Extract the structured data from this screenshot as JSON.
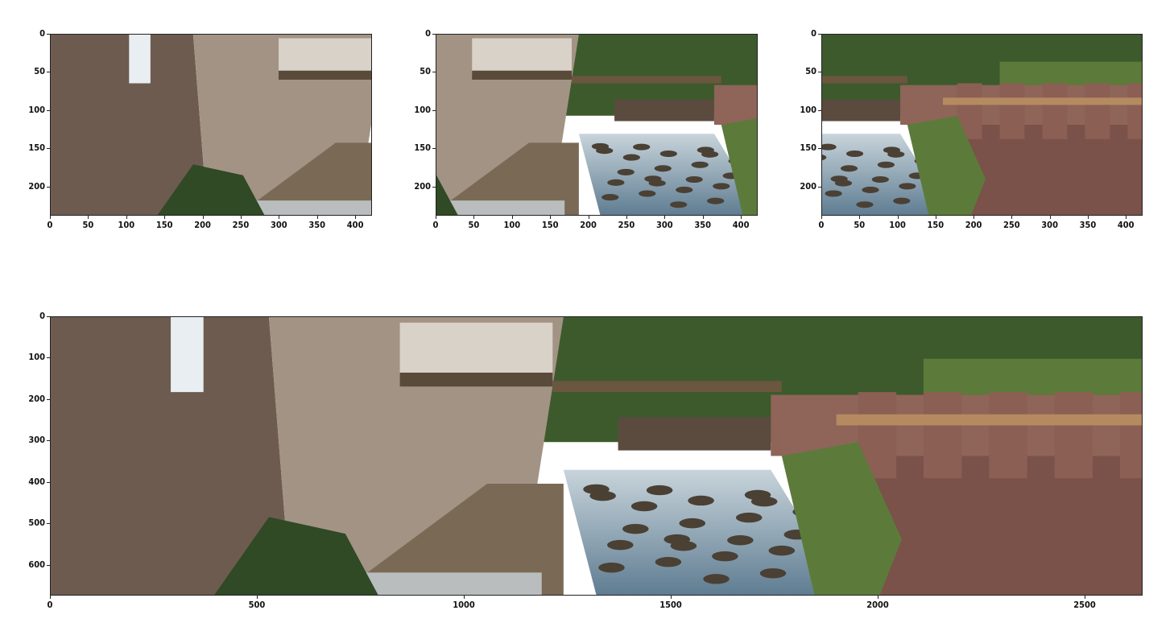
{
  "figure": {
    "panels": [
      {
        "id": "top-left",
        "x_ticks": [
          "0",
          "50",
          "100",
          "150",
          "200",
          "250",
          "300",
          "350",
          "400"
        ],
        "y_ticks": [
          "0",
          "50",
          "100",
          "150",
          "200"
        ],
        "x_range": [
          0,
          422
        ],
        "y_range": [
          0,
          238
        ],
        "scene": "mill-wall-left"
      },
      {
        "id": "top-middle",
        "x_ticks": [
          "0",
          "50",
          "100",
          "150",
          "200",
          "250",
          "300",
          "350",
          "400"
        ],
        "y_ticks": [
          "0",
          "50",
          "100",
          "150",
          "200"
        ],
        "x_range": [
          0,
          422
        ],
        "y_range": [
          0,
          238
        ],
        "scene": "weir-center"
      },
      {
        "id": "top-right",
        "x_ticks": [
          "0",
          "50",
          "100",
          "150",
          "200",
          "250",
          "300",
          "350",
          "400"
        ],
        "y_ticks": [
          "0",
          "50",
          "100",
          "150",
          "200"
        ],
        "x_range": [
          0,
          422
        ],
        "y_range": [
          0,
          238
        ],
        "scene": "stone-wall-right"
      },
      {
        "id": "bottom-panorama",
        "x_ticks": [
          "0",
          "500",
          "1000",
          "1500",
          "2000",
          "2500"
        ],
        "y_ticks": [
          "0",
          "100",
          "200",
          "300",
          "400",
          "500",
          "600"
        ],
        "x_range": [
          0,
          2640
        ],
        "y_range": [
          0,
          674
        ],
        "scene": "panorama"
      }
    ],
    "colors": {
      "wall": "#6e5b50",
      "wall_light": "#a39384",
      "foliage": "#2f4a24",
      "foliage_light": "#5c7b3a",
      "water": "#5f7d92",
      "water_light": "#c8d4db",
      "rock": "#4a4034",
      "sky_trees": "#3d5a2c",
      "railing": "#b58a60"
    }
  }
}
